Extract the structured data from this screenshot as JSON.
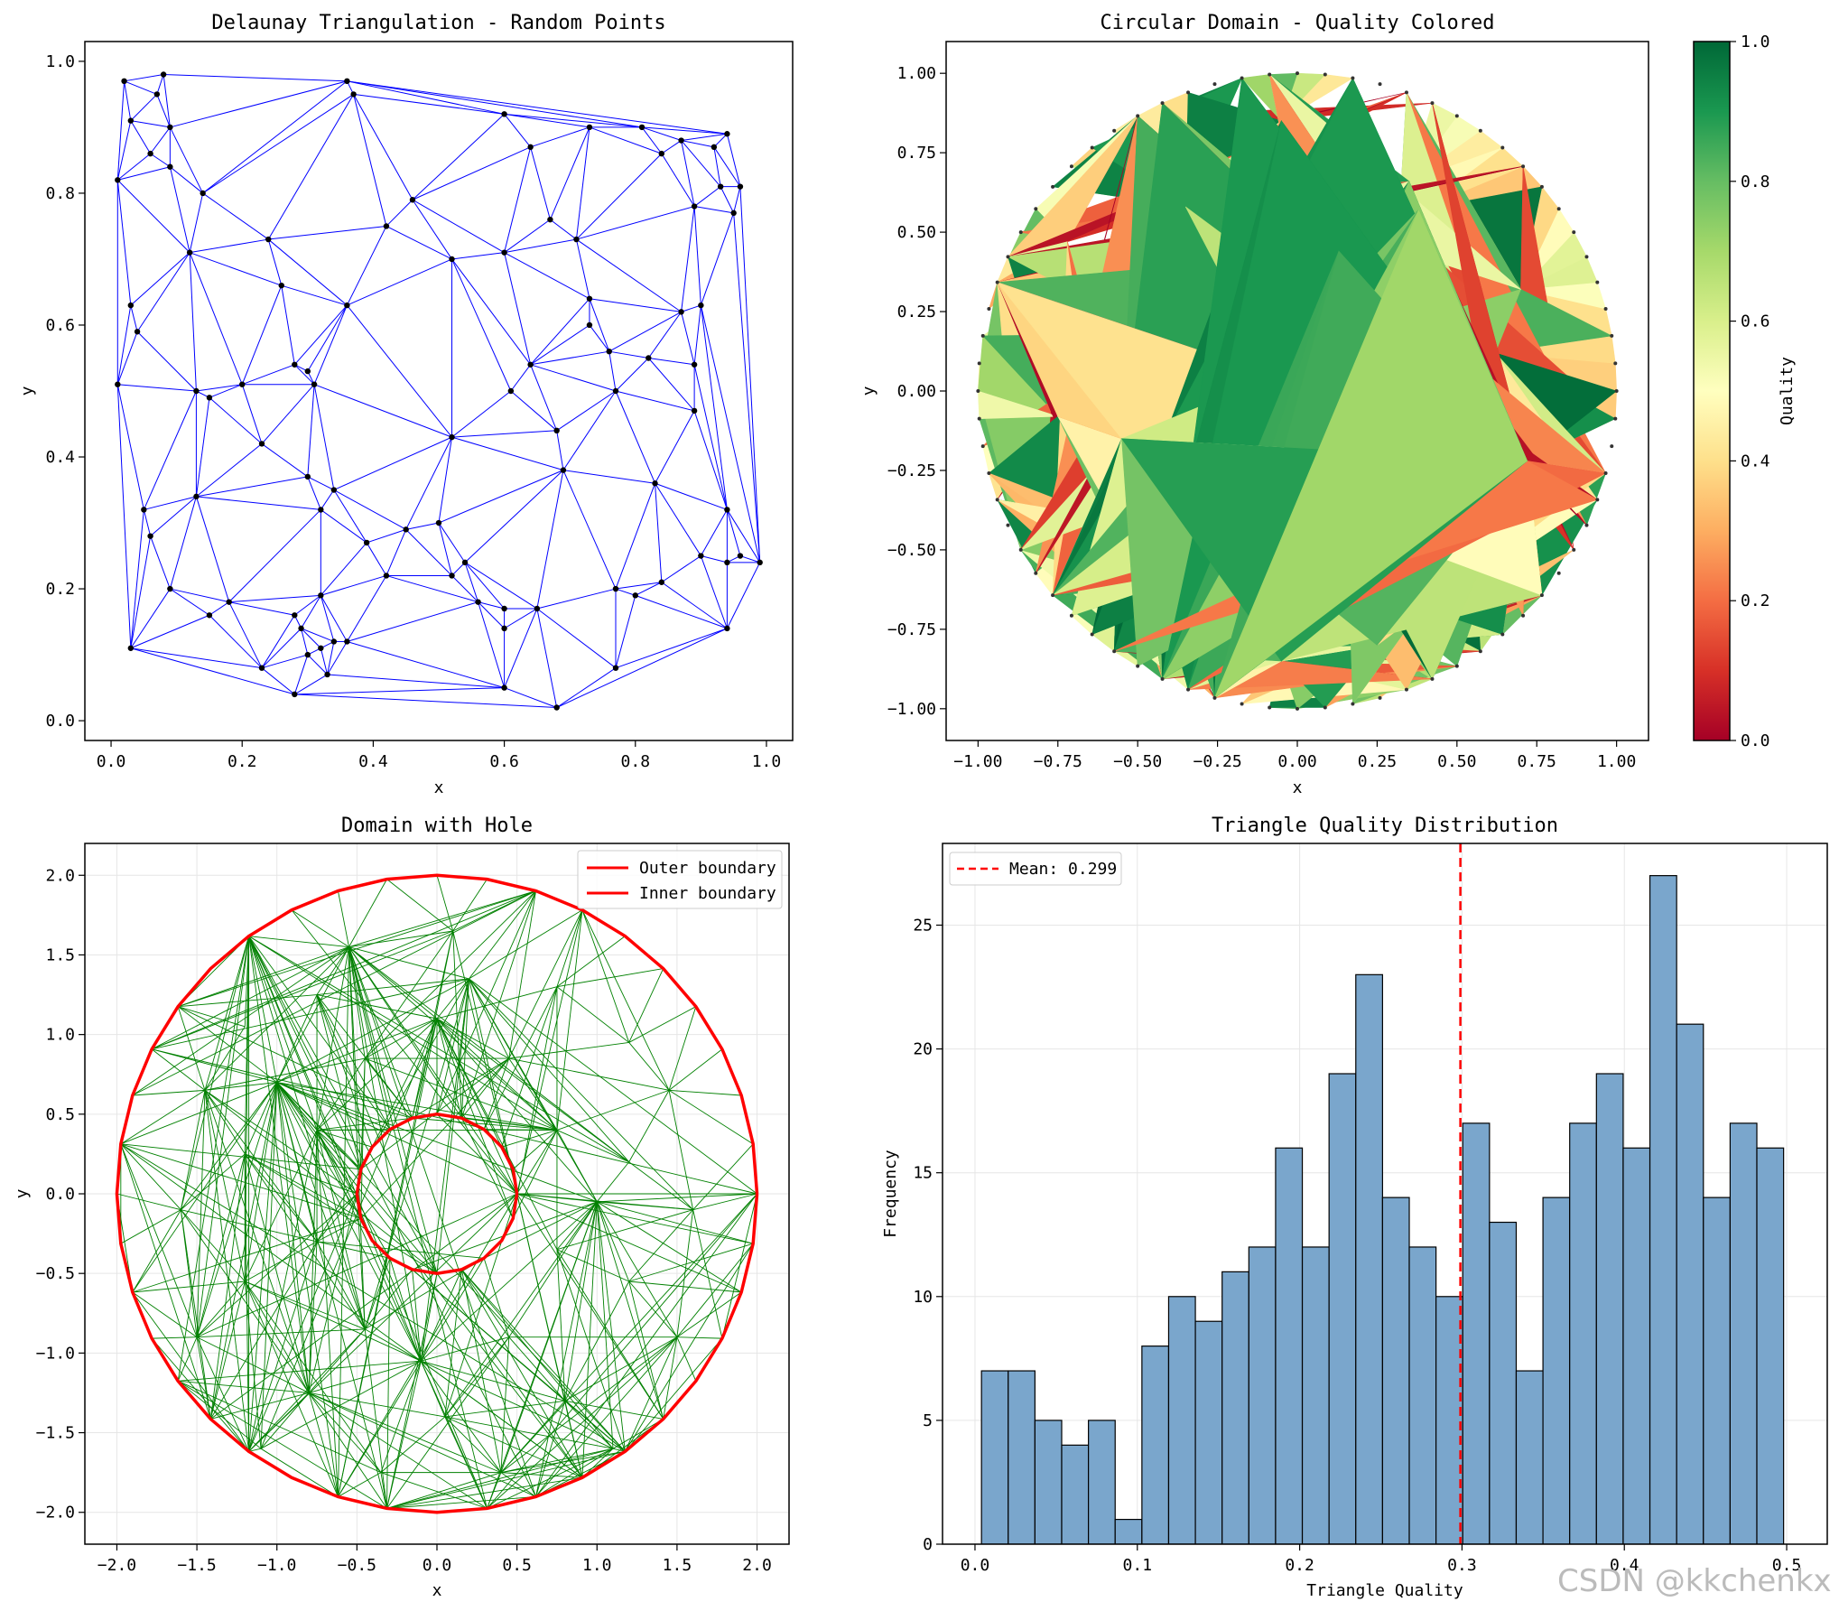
{
  "watermark": "CSDN @kkchenkx",
  "colors": {
    "delaunay_edge": "#0000ff",
    "delaunay_point": "#000000",
    "hole_edge": "#008000",
    "boundary": "#ff0000",
    "hist_bar": "#7aa6cc",
    "mean_line": "#ff0000"
  },
  "chart_data": [
    {
      "type": "scatter",
      "title": "Delaunay Triangulation - Random Points",
      "xlabel": "x",
      "ylabel": "y",
      "xlim": [
        -0.04,
        1.04
      ],
      "ylim": [
        -0.03,
        1.03
      ],
      "xticks": [
        0.0,
        0.2,
        0.4,
        0.6,
        0.8,
        1.0
      ],
      "xtick_labels": [
        "0.0",
        "0.2",
        "0.4",
        "0.6",
        "0.8",
        "1.0"
      ],
      "yticks": [
        0.0,
        0.2,
        0.4,
        0.6,
        0.8,
        1.0
      ],
      "ytick_labels": [
        "0.0",
        "0.2",
        "0.4",
        "0.6",
        "0.8",
        "1.0"
      ],
      "grid": false,
      "points": [
        [
          0.02,
          0.97
        ],
        [
          0.08,
          0.98
        ],
        [
          0.07,
          0.95
        ],
        [
          0.03,
          0.91
        ],
        [
          0.09,
          0.9
        ],
        [
          0.06,
          0.86
        ],
        [
          0.09,
          0.84
        ],
        [
          0.01,
          0.82
        ],
        [
          0.14,
          0.8
        ],
        [
          0.36,
          0.97
        ],
        [
          0.37,
          0.95
        ],
        [
          0.6,
          0.92
        ],
        [
          0.73,
          0.9
        ],
        [
          0.81,
          0.9
        ],
        [
          0.87,
          0.88
        ],
        [
          0.94,
          0.89
        ],
        [
          0.92,
          0.87
        ],
        [
          0.64,
          0.87
        ],
        [
          0.84,
          0.86
        ],
        [
          0.93,
          0.81
        ],
        [
          0.96,
          0.81
        ],
        [
          0.95,
          0.77
        ],
        [
          0.89,
          0.78
        ],
        [
          0.46,
          0.79
        ],
        [
          0.42,
          0.75
        ],
        [
          0.67,
          0.76
        ],
        [
          0.71,
          0.73
        ],
        [
          0.24,
          0.73
        ],
        [
          0.12,
          0.71
        ],
        [
          0.52,
          0.7
        ],
        [
          0.6,
          0.71
        ],
        [
          0.26,
          0.66
        ],
        [
          0.36,
          0.63
        ],
        [
          0.73,
          0.64
        ],
        [
          0.73,
          0.6
        ],
        [
          0.03,
          0.63
        ],
        [
          0.04,
          0.59
        ],
        [
          0.87,
          0.62
        ],
        [
          0.9,
          0.63
        ],
        [
          0.76,
          0.56
        ],
        [
          0.82,
          0.55
        ],
        [
          0.64,
          0.54
        ],
        [
          0.89,
          0.54
        ],
        [
          0.28,
          0.54
        ],
        [
          0.3,
          0.53
        ],
        [
          0.31,
          0.51
        ],
        [
          0.01,
          0.51
        ],
        [
          0.2,
          0.51
        ],
        [
          0.13,
          0.5
        ],
        [
          0.15,
          0.49
        ],
        [
          0.77,
          0.5
        ],
        [
          0.61,
          0.5
        ],
        [
          0.89,
          0.47
        ],
        [
          0.68,
          0.44
        ],
        [
          0.52,
          0.43
        ],
        [
          0.23,
          0.42
        ],
        [
          0.69,
          0.38
        ],
        [
          0.3,
          0.37
        ],
        [
          0.34,
          0.35
        ],
        [
          0.13,
          0.34
        ],
        [
          0.83,
          0.36
        ],
        [
          0.05,
          0.32
        ],
        [
          0.32,
          0.32
        ],
        [
          0.94,
          0.32
        ],
        [
          0.5,
          0.3
        ],
        [
          0.45,
          0.29
        ],
        [
          0.06,
          0.28
        ],
        [
          0.39,
          0.27
        ],
        [
          0.9,
          0.25
        ],
        [
          0.94,
          0.24
        ],
        [
          0.96,
          0.25
        ],
        [
          0.99,
          0.24
        ],
        [
          0.54,
          0.24
        ],
        [
          0.52,
          0.22
        ],
        [
          0.77,
          0.2
        ],
        [
          0.84,
          0.21
        ],
        [
          0.42,
          0.22
        ],
        [
          0.09,
          0.2
        ],
        [
          0.18,
          0.18
        ],
        [
          0.56,
          0.18
        ],
        [
          0.8,
          0.19
        ],
        [
          0.6,
          0.17
        ],
        [
          0.65,
          0.17
        ],
        [
          0.32,
          0.19
        ],
        [
          0.15,
          0.16
        ],
        [
          0.28,
          0.16
        ],
        [
          0.29,
          0.14
        ],
        [
          0.6,
          0.14
        ],
        [
          0.03,
          0.11
        ],
        [
          0.34,
          0.12
        ],
        [
          0.32,
          0.11
        ],
        [
          0.36,
          0.12
        ],
        [
          0.3,
          0.1
        ],
        [
          0.23,
          0.08
        ],
        [
          0.33,
          0.07
        ],
        [
          0.77,
          0.08
        ],
        [
          0.6,
          0.05
        ],
        [
          0.28,
          0.04
        ],
        [
          0.68,
          0.02
        ],
        [
          0.94,
          0.14
        ]
      ]
    },
    {
      "type": "heatmap",
      "title": "Circular Domain - Quality Colored",
      "xlabel": "x",
      "ylabel": "y",
      "xlim": [
        -1.1,
        1.1
      ],
      "ylim": [
        -1.1,
        1.1
      ],
      "xticks": [
        -1.0,
        -0.75,
        -0.5,
        -0.25,
        0.0,
        0.25,
        0.5,
        0.75,
        1.0
      ],
      "xtick_labels": [
        "−1.00",
        "−0.75",
        "−0.50",
        "−0.25",
        "0.00",
        "0.25",
        "0.50",
        "0.75",
        "1.00"
      ],
      "yticks": [
        1.0,
        0.75,
        0.5,
        0.25,
        0.0,
        -0.25,
        -0.5,
        -0.75,
        -1.0
      ],
      "ytick_labels": [
        "1.00",
        "0.75",
        "0.50",
        "0.25",
        "0.00",
        "−0.25",
        "−0.50",
        "−0.75",
        "−1.00"
      ],
      "radius": 1.0,
      "boundary_points": 72,
      "interior_points": [
        [
          -0.05,
          0.85
        ],
        [
          0.35,
          0.66
        ],
        [
          -0.35,
          0.58
        ],
        [
          0.38,
          0.57
        ],
        [
          -0.72,
          0.47
        ],
        [
          0.13,
          0.44
        ],
        [
          -0.03,
          0.35
        ],
        [
          0.7,
          0.32
        ],
        [
          0.3,
          0.2
        ],
        [
          -0.45,
          0.18
        ],
        [
          -0.18,
          0.08
        ],
        [
          0.62,
          0.12
        ],
        [
          0.02,
          0.03
        ],
        [
          0.2,
          -0.02
        ],
        [
          -0.75,
          -0.08
        ],
        [
          0.5,
          -0.15
        ],
        [
          -0.3,
          -0.22
        ],
        [
          0.05,
          -0.32
        ],
        [
          -0.6,
          -0.4
        ],
        [
          0.28,
          -0.4
        ],
        [
          -0.1,
          -0.5
        ],
        [
          0.55,
          -0.46
        ],
        [
          -0.45,
          -0.62
        ],
        [
          0.2,
          -0.62
        ],
        [
          -0.22,
          -0.7
        ],
        [
          0.25,
          -0.8
        ],
        [
          -0.05,
          -0.85
        ],
        [
          0.0,
          0.55
        ],
        [
          -0.55,
          -0.15
        ],
        [
          0.72,
          -0.22
        ]
      ],
      "colorbar": {
        "label": "Quality",
        "ticks": [
          0.0,
          0.2,
          0.4,
          0.6,
          0.8,
          1.0
        ],
        "tick_labels": [
          "0.0",
          "0.2",
          "0.4",
          "0.6",
          "0.8",
          "1.0"
        ],
        "cmap": "RdYlGn",
        "stops": [
          "#a50026",
          "#d73027",
          "#f46d43",
          "#fdae61",
          "#fee08b",
          "#ffffbf",
          "#d9ef8b",
          "#a6d96a",
          "#66bd63",
          "#1a9850",
          "#006837"
        ]
      }
    },
    {
      "type": "line",
      "title": "Domain with Hole",
      "xlabel": "x",
      "ylabel": "y",
      "xlim": [
        -2.2,
        2.2
      ],
      "ylim": [
        -2.2,
        2.2
      ],
      "xticks": [
        -2.0,
        -1.5,
        -1.0,
        -0.5,
        0.0,
        0.5,
        1.0,
        1.5,
        2.0
      ],
      "xtick_labels": [
        "−2.0",
        "−1.5",
        "−1.0",
        "−0.5",
        "0.0",
        "0.5",
        "1.0",
        "1.5",
        "2.0"
      ],
      "yticks": [
        2.0,
        1.5,
        1.0,
        0.5,
        0.0,
        -0.5,
        -1.0,
        -1.5,
        -2.0
      ],
      "ytick_labels": [
        "2.0",
        "1.5",
        "1.0",
        "0.5",
        "0.0",
        "−0.5",
        "−1.0",
        "−1.5",
        "−2.0"
      ],
      "grid": true,
      "outer_radius": 2.0,
      "inner_radius": 0.5,
      "outer_segments": 40,
      "inner_segments": 20,
      "series": [
        {
          "name": "Outer boundary"
        },
        {
          "name": "Inner boundary"
        }
      ],
      "legend_position": "upper right",
      "interior_points": [
        [
          0.1,
          1.65
        ],
        [
          -0.75,
          1.25
        ],
        [
          0.75,
          1.3
        ],
        [
          -1.2,
          1.05
        ],
        [
          1.2,
          0.95
        ],
        [
          -0.45,
          0.85
        ],
        [
          0.45,
          0.85
        ],
        [
          -1.45,
          0.65
        ],
        [
          1.45,
          0.65
        ],
        [
          -0.75,
          0.4
        ],
        [
          0.75,
          0.4
        ],
        [
          -1.2,
          0.25
        ],
        [
          1.2,
          0.2
        ],
        [
          -1.6,
          -0.1
        ],
        [
          1.6,
          -0.1
        ],
        [
          -0.75,
          -0.3
        ],
        [
          0.75,
          -0.35
        ],
        [
          -1.2,
          -0.55
        ],
        [
          1.2,
          -0.55
        ],
        [
          -0.45,
          -0.85
        ],
        [
          0.45,
          -0.9
        ],
        [
          -1.5,
          -0.9
        ],
        [
          1.5,
          -0.9
        ],
        [
          -0.8,
          -1.25
        ],
        [
          0.8,
          -1.3
        ],
        [
          0.05,
          -1.4
        ],
        [
          -1.1,
          -1.6
        ],
        [
          1.1,
          -1.6
        ],
        [
          -0.35,
          -1.75
        ],
        [
          0.4,
          -1.75
        ],
        [
          0.0,
          1.1
        ],
        [
          -0.1,
          -1.05
        ],
        [
          1.0,
          -0.05
        ],
        [
          -1.0,
          0.7
        ],
        [
          0.2,
          1.35
        ],
        [
          -0.55,
          1.55
        ]
      ]
    },
    {
      "type": "bar",
      "title": "Triangle Quality Distribution",
      "xlabel": "Triangle Quality",
      "ylabel": "Frequency",
      "xlim": [
        -0.02,
        0.525
      ],
      "ylim": [
        0,
        28.3
      ],
      "xticks": [
        0.0,
        0.1,
        0.2,
        0.3,
        0.4,
        0.5
      ],
      "xtick_labels": [
        "0.0",
        "0.1",
        "0.2",
        "0.3",
        "0.4",
        "0.5"
      ],
      "yticks": [
        0,
        5,
        10,
        15,
        20,
        25
      ],
      "ytick_labels": [
        "0",
        "5",
        "10",
        "15",
        "20",
        "25"
      ],
      "grid": true,
      "bin_start": 0.004,
      "bin_width": 0.01647,
      "values": [
        7,
        7,
        5,
        4,
        5,
        1,
        8,
        10,
        9,
        11,
        12,
        16,
        12,
        19,
        23,
        14,
        12,
        10,
        17,
        13,
        7,
        14,
        17,
        19,
        16,
        27,
        21,
        14,
        17,
        16
      ],
      "mean": 0.299,
      "mean_label": "Mean: 0.299",
      "legend_position": "upper left"
    }
  ]
}
